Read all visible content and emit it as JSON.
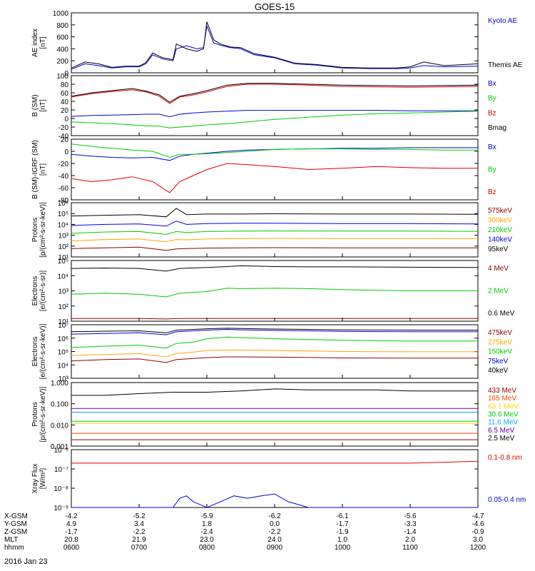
{
  "title": "GOES-15",
  "date_label": "2016 Jan 23",
  "chart_data": [
    {
      "type": "line",
      "panel": "ae",
      "ylabel": [
        "AE index",
        "[nT]"
      ],
      "ylim": [
        0,
        1000
      ],
      "yscale": "linear",
      "yticks": [
        0,
        200,
        400,
        600,
        800,
        1000
      ],
      "ytick_labels": [
        "0",
        "200",
        "400",
        "600",
        "800",
        "1000"
      ],
      "x": [
        6.0,
        6.2,
        6.4,
        6.6,
        6.8,
        7.0,
        7.1,
        7.2,
        7.35,
        7.5,
        7.55,
        7.7,
        7.85,
        7.95,
        8.0,
        8.1,
        8.2,
        8.35,
        8.5,
        8.7,
        9.0,
        9.3,
        9.6,
        10.0,
        10.4,
        10.8,
        11.0,
        11.2,
        11.5,
        12.0
      ],
      "series": [
        {
          "name": "Kyoto AE",
          "color": "#0000dd",
          "values": [
            60,
            150,
            120,
            80,
            100,
            100,
            150,
            300,
            230,
            200,
            400,
            450,
            400,
            420,
            780,
            500,
            460,
            420,
            400,
            300,
            250,
            150,
            130,
            80,
            70,
            70,
            80,
            120,
            100,
            110
          ]
        },
        {
          "name": "Themis AE",
          "color": "#000000",
          "values": [
            80,
            180,
            150,
            90,
            110,
            110,
            170,
            330,
            250,
            220,
            480,
            400,
            360,
            400,
            850,
            550,
            480,
            430,
            420,
            320,
            260,
            160,
            140,
            90,
            80,
            80,
            100,
            180,
            120,
            150
          ]
        }
      ]
    },
    {
      "type": "line",
      "panel": "bsm",
      "ylabel": [
        "B (SM)",
        "[nT]"
      ],
      "ylim": [
        -40,
        100
      ],
      "yscale": "linear",
      "yticks": [
        -40,
        -20,
        0,
        20,
        40,
        60,
        80,
        100
      ],
      "ytick_labels": [
        "-40",
        "-20",
        "0",
        "20",
        "40",
        "60",
        "80",
        "100"
      ],
      "x": [
        6.0,
        6.3,
        6.6,
        6.9,
        7.1,
        7.3,
        7.45,
        7.6,
        7.8,
        8.0,
        8.3,
        8.6,
        9.0,
        9.5,
        10.0,
        10.5,
        11.0,
        11.5,
        12.0
      ],
      "series": [
        {
          "name": "Bx",
          "color": "#0000dd",
          "values": [
            5,
            7,
            8,
            9,
            10,
            10,
            4,
            10,
            13,
            15,
            17,
            19,
            19,
            19,
            19,
            19,
            18,
            18,
            18
          ]
        },
        {
          "name": "By",
          "color": "#00cc00",
          "values": [
            -8,
            -10,
            -12,
            -15,
            -17,
            -18,
            -22,
            -20,
            -18,
            -15,
            -12,
            -8,
            -2,
            3,
            8,
            11,
            13,
            15,
            17
          ]
        },
        {
          "name": "Bz",
          "color": "#dd0000",
          "values": [
            50,
            58,
            63,
            67,
            62,
            52,
            35,
            50,
            55,
            62,
            75,
            80,
            80,
            78,
            75,
            74,
            73,
            74,
            75
          ]
        },
        {
          "name": "Bmag",
          "color": "#000000",
          "values": [
            52,
            60,
            65,
            70,
            64,
            55,
            38,
            52,
            58,
            65,
            78,
            82,
            82,
            80,
            78,
            77,
            76,
            77,
            78
          ]
        }
      ]
    },
    {
      "type": "line",
      "panel": "bigrf",
      "ylabel": [
        "B (SM)-IGRF (SM)",
        "[nT]"
      ],
      "ylim": [
        -80,
        20
      ],
      "yscale": "linear",
      "yticks": [
        -80,
        -60,
        -40,
        -20,
        0,
        20
      ],
      "ytick_labels": [
        "-80",
        "-60",
        "-40",
        "-20",
        "0",
        "20"
      ],
      "x": [
        6.0,
        6.3,
        6.6,
        6.9,
        7.2,
        7.45,
        7.6,
        7.8,
        8.0,
        8.3,
        8.6,
        9.0,
        9.5,
        10.0,
        10.5,
        11.0,
        11.5,
        12.0
      ],
      "series": [
        {
          "name": "Bx",
          "color": "#0000dd",
          "values": [
            -5,
            -8,
            -10,
            -11,
            -10,
            -15,
            -8,
            -5,
            -3,
            0,
            2,
            3,
            4,
            5,
            5,
            6,
            6,
            6
          ]
        },
        {
          "name": "By",
          "color": "#00cc00",
          "values": [
            12,
            8,
            5,
            2,
            0,
            -10,
            -5,
            -5,
            -4,
            -2,
            0,
            3,
            4,
            4,
            3,
            3,
            2,
            2
          ]
        },
        {
          "name": "Bz",
          "color": "#dd0000",
          "values": [
            -45,
            -50,
            -47,
            -42,
            -50,
            -68,
            -50,
            -40,
            -30,
            -20,
            -22,
            -25,
            -30,
            -28,
            -25,
            -27,
            -28,
            -28
          ]
        }
      ]
    },
    {
      "type": "line",
      "panel": "protons_low",
      "ylabel": [
        "Protons",
        "[p/(cm²-s-sr-keV)]"
      ],
      "ylim": [
        10,
        1000000
      ],
      "yscale": "log",
      "yticks": [
        10,
        100,
        1000,
        10000,
        100000,
        1000000
      ],
      "ytick_labels": [
        "10¹",
        "10²",
        "10³",
        "10⁴",
        "10⁵",
        "10⁶"
      ],
      "x": [
        6.0,
        6.5,
        7.0,
        7.4,
        7.55,
        7.7,
        8.0,
        8.5,
        9.0,
        10.0,
        11.0,
        12.0
      ],
      "series": [
        {
          "name": "575keV",
          "color": "#8b0000",
          "values": [
            60,
            70,
            80,
            40,
            55,
            60,
            65,
            70,
            72,
            70,
            70,
            70
          ]
        },
        {
          "name": "300keV",
          "color": "#ffa500",
          "values": [
            300,
            400,
            450,
            250,
            400,
            380,
            450,
            500,
            520,
            500,
            500,
            500
          ]
        },
        {
          "name": "210keV",
          "color": "#00cc00",
          "values": [
            1500,
            2000,
            2200,
            1200,
            2200,
            1800,
            2200,
            2400,
            2500,
            2400,
            2400,
            2300
          ]
        },
        {
          "name": "140keV",
          "color": "#0000dd",
          "values": [
            8000,
            10000,
            11000,
            7000,
            20000,
            10000,
            12000,
            13000,
            13000,
            12000,
            12000,
            11000
          ]
        },
        {
          "name": "95keV",
          "color": "#000000",
          "values": [
            60000,
            70000,
            80000,
            50000,
            300000,
            80000,
            90000,
            90000,
            95000,
            90000,
            90000,
            85000
          ]
        }
      ]
    },
    {
      "type": "line",
      "panel": "electrons_mev",
      "ylabel": [
        "Electrons",
        "[e/(cm²-s-sr)]"
      ],
      "ylim": [
        10,
        100000
      ],
      "yscale": "log",
      "yticks": [
        10,
        100,
        1000,
        10000,
        100000
      ],
      "ytick_labels": [
        "10¹",
        "10²",
        "10³",
        "10⁴",
        "10⁵"
      ],
      "x": [
        6.0,
        6.5,
        7.0,
        7.4,
        7.6,
        8.0,
        8.3,
        8.5,
        9.0,
        9.5,
        10.0,
        11.0,
        12.0
      ],
      "series": [
        {
          "name": "4 MeV",
          "color": "#8b0000",
          "values": [
            15,
            15,
            15,
            14,
            15,
            15,
            15,
            15,
            15,
            15,
            15,
            15,
            15
          ]
        },
        {
          "name": "2 MeV",
          "color": "#00cc00",
          "values": [
            600,
            700,
            600,
            400,
            700,
            900,
            1500,
            1400,
            1500,
            1400,
            1200,
            1000,
            1000
          ]
        },
        {
          "name": "0.6 MeV",
          "color": "#000000",
          "values": [
            30000,
            32000,
            30000,
            20000,
            30000,
            35000,
            40000,
            45000,
            40000,
            38000,
            38000,
            36000,
            35000
          ]
        }
      ]
    },
    {
      "type": "line",
      "panel": "electrons_kev",
      "ylabel": [
        "Electrons",
        "[e/(cm²-s-sr-keV)]"
      ],
      "ylim": [
        1000,
        10000000
      ],
      "yscale": "log",
      "yticks": [
        1000,
        10000,
        100000,
        1000000,
        10000000
      ],
      "ytick_labels": [
        "10³",
        "10⁴",
        "10⁵",
        "10⁶",
        "10⁷"
      ],
      "x": [
        6.0,
        6.5,
        7.0,
        7.4,
        7.55,
        7.8,
        8.0,
        8.3,
        8.5,
        9.0,
        9.5,
        10.0,
        11.0,
        12.0
      ],
      "series": [
        {
          "name": "475keV",
          "color": "#8b0000",
          "values": [
            20000,
            25000,
            28000,
            15000,
            25000,
            30000,
            35000,
            40000,
            40000,
            38000,
            36000,
            33000,
            32000,
            32000
          ]
        },
        {
          "name": "275keV",
          "color": "#ffa500",
          "values": [
            50000,
            60000,
            70000,
            40000,
            70000,
            90000,
            120000,
            130000,
            130000,
            120000,
            110000,
            100000,
            95000,
            95000
          ]
        },
        {
          "name": "150keV",
          "color": "#00cc00",
          "values": [
            200000,
            250000,
            300000,
            180000,
            400000,
            500000,
            900000,
            1200000,
            1100000,
            900000,
            800000,
            700000,
            600000,
            600000
          ]
        },
        {
          "name": "75keV",
          "color": "#0000dd",
          "values": [
            2000000,
            2200000,
            2500000,
            1800000,
            3000000,
            3500000,
            4000000,
            4500000,
            4200000,
            3800000,
            3500000,
            3200000,
            3000000,
            3000000
          ]
        },
        {
          "name": "40keV",
          "color": "#000000",
          "values": [
            3000000,
            3300000,
            3500000,
            2500000,
            4000000,
            4500000,
            5000000,
            5500000,
            5200000,
            4800000,
            4500000,
            4200000,
            4000000,
            4000000
          ]
        }
      ]
    },
    {
      "type": "line",
      "panel": "protons_mev",
      "ylabel": [
        "Protons",
        "[p/(cm²-s-sr-keV)]"
      ],
      "ylim": [
        0.001,
        1
      ],
      "yscale": "log",
      "yticks": [
        0.001,
        0.01,
        0.1,
        1
      ],
      "ytick_labels": [
        "0.001",
        "0.010",
        "0.100",
        "1.000"
      ],
      "x": [
        6.0,
        6.5,
        7.0,
        7.5,
        8.0,
        8.5,
        9.0,
        9.5,
        10.0,
        10.5,
        11.0,
        11.5,
        12.0
      ],
      "series": [
        {
          "name": "433 MeV",
          "color": "#8b0000",
          "values": [
            0.002,
            0.002,
            0.002,
            0.002,
            0.002,
            0.002,
            0.002,
            0.002,
            0.002,
            0.002,
            0.002,
            0.002,
            0.002
          ]
        },
        {
          "name": "165 MeV",
          "color": "#ff4500",
          "values": [
            0.004,
            0.004,
            0.004,
            0.004,
            0.004,
            0.004,
            0.004,
            0.004,
            0.004,
            0.004,
            0.004,
            0.004,
            0.004
          ]
        },
        {
          "name": "63.1 MeV",
          "color": "#ffd700",
          "values": [
            0.012,
            0.012,
            0.012,
            0.012,
            0.012,
            0.012,
            0.012,
            0.012,
            0.012,
            0.012,
            0.012,
            0.012,
            0.012
          ]
        },
        {
          "name": "30.6 MeV",
          "color": "#00cc00",
          "values": [
            0.015,
            0.015,
            0.015,
            0.015,
            0.015,
            0.015,
            0.015,
            0.015,
            0.015,
            0.015,
            0.015,
            0.015,
            0.015
          ]
        },
        {
          "name": "11.6 MeV",
          "color": "#00aaff",
          "values": [
            0.04,
            0.04,
            0.04,
            0.04,
            0.04,
            0.04,
            0.04,
            0.04,
            0.04,
            0.04,
            0.04,
            0.04,
            0.04
          ]
        },
        {
          "name": "6.5 MeV",
          "color": "#6600aa",
          "values": [
            0.06,
            0.06,
            0.06,
            0.06,
            0.06,
            0.06,
            0.06,
            0.06,
            0.06,
            0.06,
            0.06,
            0.06,
            0.06
          ]
        },
        {
          "name": "2.5 MeV",
          "color": "#000000",
          "values": [
            0.25,
            0.25,
            0.3,
            0.35,
            0.35,
            0.4,
            0.5,
            0.45,
            0.45,
            0.45,
            0.4,
            0.4,
            0.4
          ]
        }
      ]
    },
    {
      "type": "line",
      "panel": "xray",
      "ylabel": [
        "Xray Flux",
        "[W/m²]"
      ],
      "ylim": [
        1e-09,
        1e-06
      ],
      "yscale": "log",
      "yticks": [
        1e-09,
        1e-08,
        1e-07,
        1e-06
      ],
      "ytick_labels": [
        "10⁻⁹",
        "10⁻⁸",
        "10⁻⁷",
        "10⁻⁶"
      ],
      "x": [
        6.0,
        6.5,
        7.0,
        7.5,
        7.6,
        7.7,
        7.8,
        8.0,
        8.2,
        8.4,
        8.6,
        8.8,
        9.0,
        9.2,
        9.5,
        10.0,
        11.0,
        12.0
      ],
      "series": [
        {
          "name": "0.1-0.8 nm",
          "color": "#dd0000",
          "values": [
            2e-07,
            2e-07,
            2e-07,
            2e-07,
            2e-07,
            2e-07,
            2e-07,
            2e-07,
            2e-07,
            2e-07,
            2e-07,
            2e-07,
            2e-07,
            2e-07,
            2e-07,
            2e-07,
            2e-07,
            2.5e-07
          ]
        },
        {
          "name": "0.05-0.4 nm",
          "color": "#0000dd",
          "values": [
            1e-09,
            1e-09,
            1e-09,
            1e-09,
            3e-09,
            4e-09,
            2e-09,
            1e-09,
            2e-09,
            4e-09,
            3e-09,
            4e-09,
            5e-09,
            2e-09,
            1e-09,
            1e-09,
            1e-09,
            1e-09
          ]
        }
      ]
    }
  ],
  "x_axis": {
    "xlim": [
      6.0,
      12.0
    ],
    "ticks": [
      6.0,
      7.0,
      8.0,
      9.0,
      10.0,
      11.0,
      12.0
    ],
    "rows": [
      {
        "label": "X-GSM",
        "values": [
          "-4.2",
          "-5.2",
          "-5.9",
          "-6.2",
          "-6.1",
          "-5.6",
          "-4.7"
        ]
      },
      {
        "label": "Y-GSM",
        "values": [
          "4.9",
          "3.4",
          "1.8",
          "0.0",
          "-1.7",
          "-3.3",
          "-4.6"
        ]
      },
      {
        "label": "Z-GSM",
        "values": [
          "-1.7",
          "-2.2",
          "-2.4",
          "-2.2",
          "-1.9",
          "-1.4",
          "-0.9"
        ]
      },
      {
        "label": "MLT",
        "values": [
          "20.8",
          "21.9",
          "23.0",
          "24.0",
          "1.0",
          "2.0",
          "3.0"
        ]
      },
      {
        "label": "hhmm",
        "values": [
          "0600",
          "0700",
          "0800",
          "0900",
          "1000",
          "1100",
          "1200"
        ]
      }
    ]
  }
}
